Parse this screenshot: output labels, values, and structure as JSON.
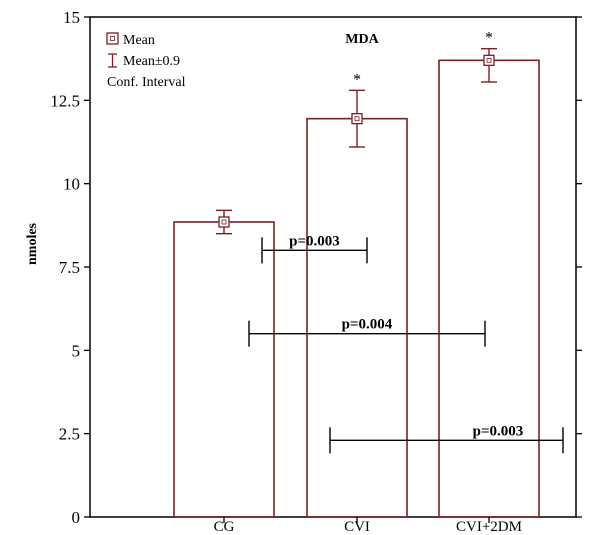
{
  "chart_data": {
    "type": "bar",
    "title": "MDA",
    "ylabel": "nmoles",
    "xlabel": "",
    "ylim": [
      0,
      15
    ],
    "yticks": [
      0,
      2.5,
      5,
      7.5,
      10,
      12.5,
      15
    ],
    "ytick_labels": [
      "0",
      "2.5",
      "5",
      "7.5",
      "10",
      "12.5",
      "15"
    ],
    "categories": [
      "CG",
      "CVI",
      "CVI+2DM"
    ],
    "values": [
      8.85,
      11.95,
      13.7
    ],
    "error_low": [
      8.5,
      11.1,
      13.05
    ],
    "error_high": [
      9.2,
      12.8,
      14.05
    ],
    "significance_marks": [
      "",
      "*",
      "*"
    ],
    "legend": {
      "position": "top-left",
      "entries": [
        "Mean",
        "Mean±0.9",
        "Conf. Interval"
      ]
    },
    "comparisons": [
      {
        "label": "p=0.003",
        "from": "CG",
        "to": "CVI",
        "y": 8.0
      },
      {
        "label": "p=0.004",
        "from": "CG",
        "to": "CVI+2DM",
        "y": 5.5
      },
      {
        "label": "p=0.003",
        "from": "CVI",
        "to": "CVI+2DM",
        "y": 2.3
      }
    ],
    "colors": {
      "bar": "#7a1f24",
      "axis": "#000000"
    }
  }
}
